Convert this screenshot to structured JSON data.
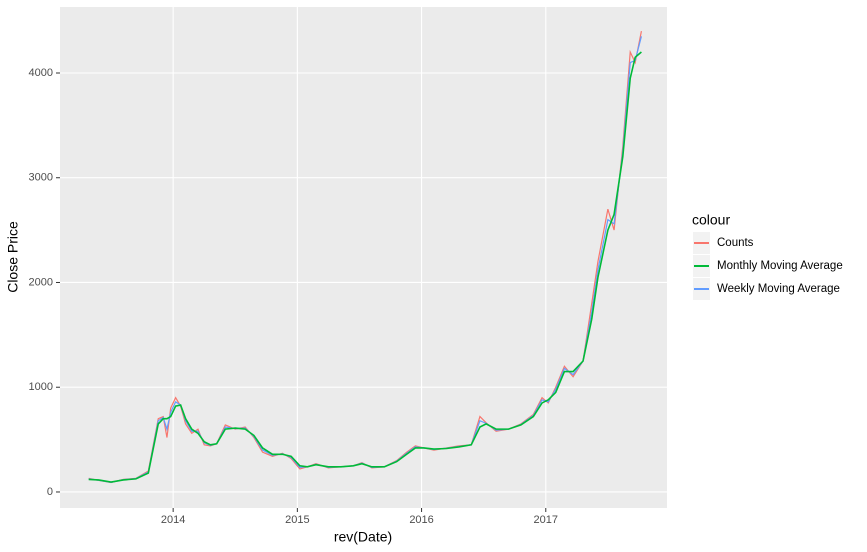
{
  "chart_data": {
    "type": "line",
    "x_label": "rev(Date)",
    "y_label": "Close Price",
    "legend_title": "colour",
    "legend_position": "right",
    "grid": true,
    "xlim": [
      2013.089,
      2017.976
    ],
    "xticks": [
      2014,
      2015,
      2016,
      2017
    ],
    "ylim": [
      -153,
      4630
    ],
    "yticks": [
      0,
      1000,
      2000,
      3000,
      4000
    ],
    "x": [
      2013.32,
      2013.4,
      2013.5,
      2013.6,
      2013.7,
      2013.8,
      2013.88,
      2013.92,
      2013.95,
      2013.98,
      2014.02,
      2014.06,
      2014.1,
      2014.15,
      2014.2,
      2014.25,
      2014.3,
      2014.35,
      2014.42,
      2014.5,
      2014.58,
      2014.65,
      2014.72,
      2014.8,
      2014.88,
      2014.95,
      2015.02,
      2015.08,
      2015.15,
      2015.25,
      2015.35,
      2015.45,
      2015.52,
      2015.6,
      2015.7,
      2015.8,
      2015.88,
      2015.95,
      2016.02,
      2016.1,
      2016.2,
      2016.3,
      2016.4,
      2016.47,
      2016.52,
      2016.6,
      2016.7,
      2016.8,
      2016.9,
      2016.97,
      2017.02,
      2017.08,
      2017.15,
      2017.22,
      2017.3,
      2017.37,
      2017.42,
      2017.5,
      2017.55,
      2017.62,
      2017.68,
      2017.72,
      2017.77
    ],
    "series": [
      {
        "name": "Counts",
        "color": "#F8766D",
        "values": [
          130,
          110,
          90,
          120,
          130,
          200,
          700,
          720,
          520,
          800,
          900,
          820,
          650,
          560,
          600,
          450,
          440,
          460,
          640,
          600,
          620,
          520,
          380,
          340,
          370,
          320,
          220,
          240,
          270,
          230,
          240,
          250,
          280,
          230,
          240,
          300,
          380,
          440,
          420,
          400,
          420,
          440,
          450,
          720,
          660,
          580,
          600,
          650,
          740,
          900,
          850,
          1000,
          1200,
          1100,
          1250,
          1800,
          2200,
          2700,
          2500,
          3300,
          4200,
          4100,
          4400
        ]
      },
      {
        "name": "Monthly Moving Average",
        "color": "#00BA38",
        "values": [
          120,
          115,
          95,
          115,
          125,
          180,
          650,
          700,
          700,
          720,
          820,
          830,
          700,
          600,
          560,
          480,
          450,
          460,
          600,
          610,
          600,
          540,
          420,
          360,
          360,
          340,
          250,
          240,
          260,
          240,
          240,
          250,
          270,
          240,
          240,
          290,
          360,
          420,
          420,
          410,
          415,
          430,
          450,
          620,
          650,
          600,
          600,
          640,
          720,
          850,
          880,
          950,
          1150,
          1150,
          1250,
          1650,
          2050,
          2500,
          2650,
          3200,
          3950,
          4150,
          4200
        ]
      },
      {
        "name": "Weekly Moving Average",
        "color": "#619CFF",
        "values": [
          125,
          112,
          92,
          118,
          128,
          190,
          680,
          710,
          600,
          760,
          860,
          830,
          680,
          580,
          580,
          470,
          445,
          460,
          620,
          605,
          610,
          530,
          400,
          350,
          365,
          330,
          235,
          240,
          265,
          235,
          240,
          250,
          275,
          235,
          240,
          295,
          370,
          430,
          420,
          405,
          418,
          435,
          450,
          680,
          655,
          590,
          600,
          645,
          730,
          880,
          860,
          980,
          1180,
          1120,
          1250,
          1720,
          2120,
          2600,
          2560,
          3250,
          4100,
          4120,
          4350
        ]
      }
    ]
  }
}
